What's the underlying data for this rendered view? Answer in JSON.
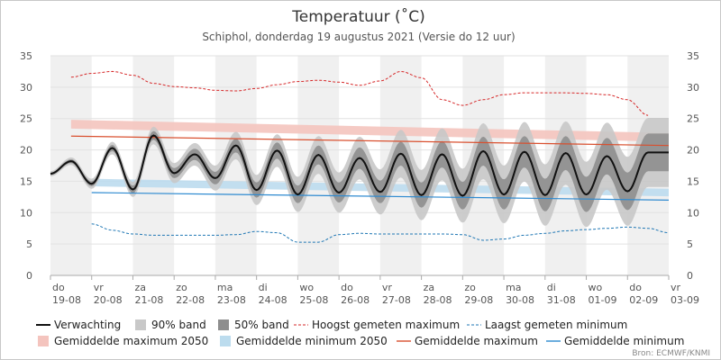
{
  "chart_data": {
    "type": "line",
    "title": "Temperatuur (˚C)",
    "subtitle": "Schiphol, donderdag 19 augustus 2021 (Versie do 12 uur)",
    "credit": "Bron: ECMWF/KNMI",
    "ylim": [
      0,
      35
    ],
    "yticks": [
      0,
      5,
      10,
      15,
      20,
      25,
      30,
      35
    ],
    "grid": true,
    "legend_position": "bottom",
    "x_days": [
      {
        "day": "do",
        "date": "19-08"
      },
      {
        "day": "vr",
        "date": "20-08"
      },
      {
        "day": "za",
        "date": "21-08"
      },
      {
        "day": "zo",
        "date": "22-08"
      },
      {
        "day": "ma",
        "date": "23-08"
      },
      {
        "day": "di",
        "date": "24-08"
      },
      {
        "day": "wo",
        "date": "25-08"
      },
      {
        "day": "do",
        "date": "26-08"
      },
      {
        "day": "vr",
        "date": "27-08"
      },
      {
        "day": "za",
        "date": "28-08"
      },
      {
        "day": "zo",
        "date": "29-08"
      },
      {
        "day": "ma",
        "date": "30-08"
      },
      {
        "day": "di",
        "date": "31-08"
      },
      {
        "day": "wo",
        "date": "01-09"
      },
      {
        "day": "do",
        "date": "02-09"
      },
      {
        "day": "vr",
        "date": "03-09"
      }
    ],
    "forecast": {
      "name": "Verwachting",
      "t_start_day": 0.0,
      "t_end_day": 15.0,
      "min": [
        16.2,
        14.6,
        13.7,
        16.3,
        15.5,
        13.6,
        12.9,
        13.2,
        13.3,
        12.8,
        12.7,
        12.9,
        12.8,
        12.9,
        13.4
      ],
      "max": [
        18.2,
        20.3,
        22.3,
        19.3,
        20.7,
        19.9,
        19.2,
        18.7,
        19.4,
        19.3,
        19.8,
        19.7,
        19.5,
        19.0,
        19.6
      ],
      "end_value": 19.6
    },
    "band_50": {
      "name": "50% band",
      "half_width": [
        0.2,
        0.4,
        0.6,
        0.8,
        1.0,
        1.2,
        1.4,
        1.6,
        1.8,
        2.0,
        2.2,
        2.4,
        2.6,
        2.8,
        3.0
      ]
    },
    "band_90": {
      "name": "90% band",
      "half_width": [
        0.4,
        0.8,
        1.2,
        1.6,
        2.0,
        2.4,
        2.8,
        3.2,
        3.6,
        4.0,
        4.3,
        4.6,
        4.9,
        5.2,
        5.5
      ]
    },
    "record_max": {
      "name": "Hoogst gemeten maximum",
      "x_day": [
        0.5,
        1.0,
        1.5,
        2.0,
        2.5,
        3.0,
        3.5,
        4.0,
        4.5,
        5.0,
        5.5,
        6.0,
        6.5,
        7.0,
        7.5,
        8.0,
        8.5,
        9.0,
        9.5,
        10.0,
        10.5,
        11.0,
        11.5,
        12.0,
        12.5,
        13.0,
        13.5,
        14.0,
        14.5
      ],
      "values": [
        31.6,
        32.2,
        32.5,
        31.9,
        30.6,
        30.1,
        29.9,
        29.5,
        29.4,
        29.8,
        30.4,
        30.9,
        31.1,
        30.8,
        30.3,
        31.0,
        32.5,
        31.5,
        28.0,
        27.1,
        28.0,
        28.8,
        29.1,
        29.1,
        29.1,
        29.0,
        28.8,
        28.0,
        25.5
      ]
    },
    "record_min": {
      "name": "Laagst gemeten minimum",
      "x_day": [
        1.0,
        1.5,
        2.0,
        2.5,
        3.0,
        3.5,
        4.0,
        4.5,
        5.0,
        5.5,
        6.0,
        6.5,
        7.0,
        7.5,
        8.0,
        8.5,
        9.0,
        9.5,
        10.0,
        10.5,
        11.0,
        11.5,
        12.0,
        12.5,
        13.0,
        13.5,
        14.0,
        14.5,
        15.0
      ],
      "values": [
        8.2,
        7.2,
        6.6,
        6.4,
        6.4,
        6.4,
        6.4,
        6.5,
        7.0,
        6.8,
        5.3,
        5.3,
        6.5,
        6.7,
        6.6,
        6.6,
        6.6,
        6.6,
        6.5,
        5.6,
        5.8,
        6.4,
        6.7,
        7.1,
        7.3,
        7.5,
        7.7,
        7.5,
        6.8
      ]
    },
    "avg_max_2050": {
      "name": "Gemiddelde maximum 2050",
      "x_day": [
        0.5,
        15.0
      ],
      "values": [
        24.1,
        22.0
      ],
      "thickness": 1.4
    },
    "avg_min_2050": {
      "name": "Gemiddelde minimum 2050",
      "x_day": [
        1.0,
        15.0
      ],
      "values": [
        14.8,
        13.2
      ],
      "thickness": 1.2
    },
    "avg_max": {
      "name": "Gemiddelde maximum",
      "x_day": [
        0.5,
        15.0
      ],
      "values": [
        22.2,
        20.7
      ]
    },
    "avg_min": {
      "name": "Gemiddelde minimum",
      "x_day": [
        1.0,
        15.0
      ],
      "values": [
        13.2,
        12.0
      ]
    },
    "colors": {
      "forecast": "#111111",
      "band_90": "#c8c8c8",
      "band_50": "#8e8e8e",
      "record_max": "#d62728",
      "record_min": "#1f77b4",
      "avg_max_2050": "#f4c4be",
      "avg_min_2050": "#bcdcee",
      "avg_max": "#d9502f",
      "avg_min": "#2e8ad0",
      "day_shade": "#f0f0f0",
      "grid": "#e2e2e2",
      "axis": "#aaaaaa"
    }
  }
}
